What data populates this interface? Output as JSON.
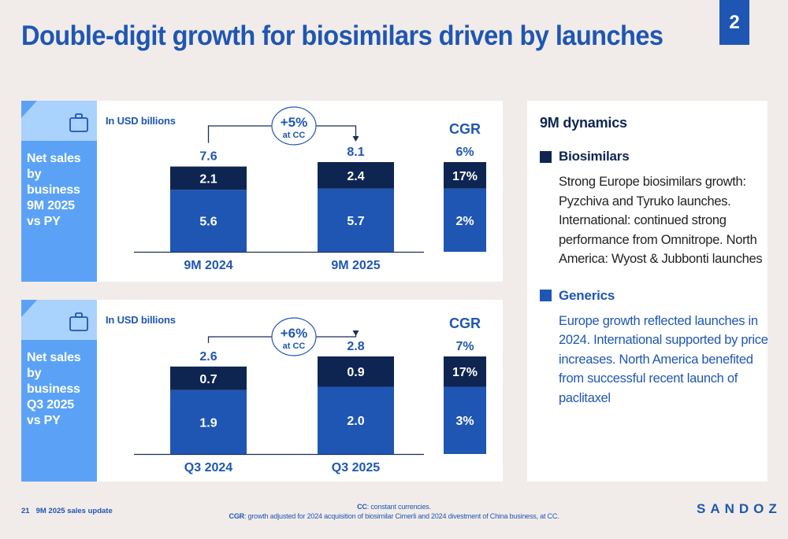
{
  "title": "Double-digit growth for biosimilars driven by launches",
  "page_badge": "2",
  "colors": {
    "brand": "#1f56b3",
    "biosimilars": "#0e2552",
    "generics": "#1f56b3",
    "side_panel": "#5ba2f7",
    "side_panel_top": "#a9d2fc"
  },
  "panels": [
    {
      "side_label": [
        "Net sales by",
        "business",
        "9M 2025",
        "vs PY"
      ],
      "icon": "briefcase-icon",
      "unit_label": "In USD billions"
    },
    {
      "side_label": [
        "Net sales by",
        "business",
        "Q3 2025",
        "vs PY"
      ],
      "icon": "briefcase-icon",
      "unit_label": "In USD billions"
    }
  ],
  "chart_data": [
    {
      "type": "bar",
      "stacked": true,
      "title": "Net sales by business 9M 2025 vs PY",
      "ylabel": "In USD billions",
      "categories": [
        "9M 2024",
        "9M 2025"
      ],
      "series": [
        {
          "name": "Generics",
          "values": [
            5.6,
            5.7
          ]
        },
        {
          "name": "Biosimilars",
          "values": [
            2.1,
            2.4
          ]
        }
      ],
      "totals": [
        "7.6",
        "8.1"
      ],
      "growth_annotation": {
        "value": "+5%",
        "sub": "at CC"
      },
      "cgr": {
        "label": "CGR",
        "total": "6%",
        "biosimilars": "17%",
        "generics": "2%"
      }
    },
    {
      "type": "bar",
      "stacked": true,
      "title": "Net sales by business Q3 2025 vs PY",
      "ylabel": "In USD billions",
      "categories": [
        "Q3 2024",
        "Q3 2025"
      ],
      "series": [
        {
          "name": "Generics",
          "values": [
            1.9,
            2.0
          ]
        },
        {
          "name": "Biosimilars",
          "values": [
            0.7,
            0.9
          ]
        }
      ],
      "totals": [
        "2.6",
        "2.8"
      ],
      "growth_annotation": {
        "value": "+6%",
        "sub": "at CC"
      },
      "cgr": {
        "label": "CGR",
        "total": "7%",
        "biosimilars": "17%",
        "generics": "3%"
      }
    }
  ],
  "dynamics": {
    "title": "9M dynamics",
    "biosimilars": {
      "heading": "Biosimilars",
      "text": "Strong Europe biosimilars growth: Pyzchiva and Tyruko launches. International: continued strong performance from Omnitrope. North America: Wyost & Jubbonti launches"
    },
    "generics": {
      "heading": "Generics",
      "text": "Europe growth reflected launches in 2024. International supported by price increases. North America benefited from successful recent launch of paclitaxel"
    }
  },
  "footer": {
    "page_number": "21",
    "doc_title": "9M 2025 sales update",
    "note1_term": "CC",
    "note1_text": ": constant currencies.",
    "note2_term": "CGR",
    "note2_text": ": growth adjusted for 2024 acquisition of biosimilar Cimerli and 2024 divestment of China business, at CC.",
    "logo": "SANDOZ"
  }
}
